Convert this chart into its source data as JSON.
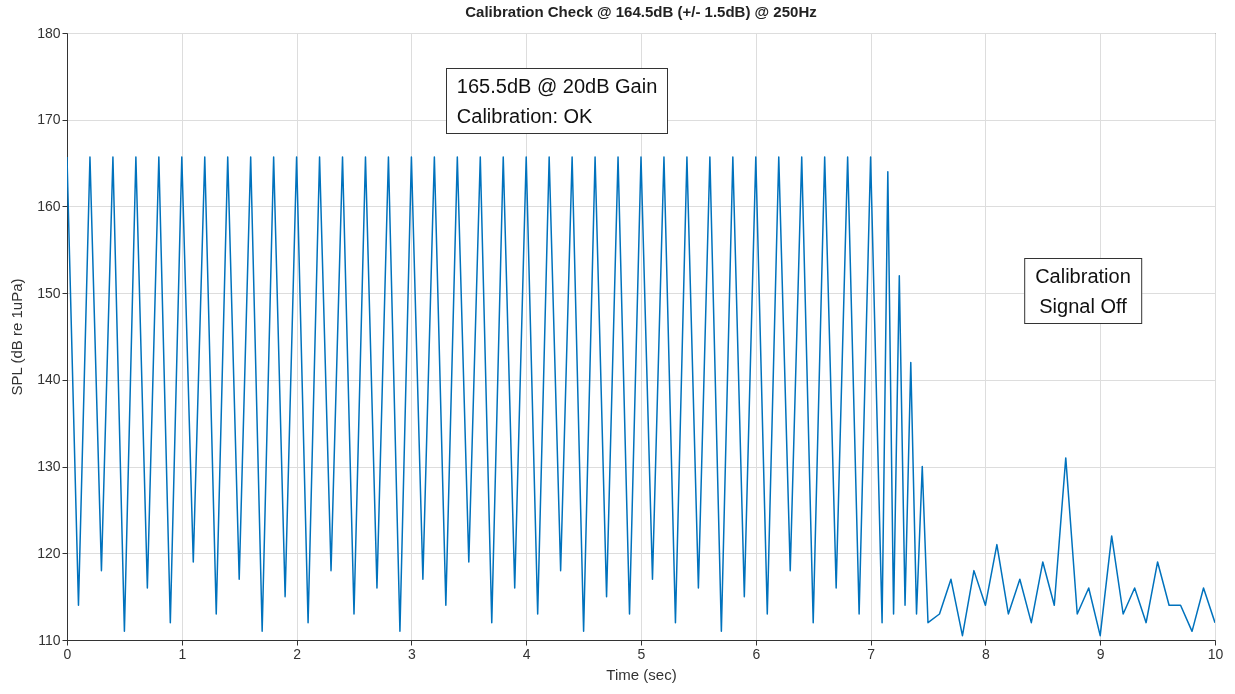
{
  "chart_data": {
    "type": "line",
    "title": "Calibration Check @ 164.5dB (+/- 1.5dB) @ 250Hz",
    "xlabel": "Time (sec)",
    "ylabel": "SPL (dB re 1uPa)",
    "xlim": [
      0,
      10
    ],
    "xticks": [
      0,
      1,
      2,
      3,
      4,
      5,
      6,
      7,
      8,
      9,
      10
    ],
    "ylim": [
      110,
      180
    ],
    "yticks": [
      110,
      120,
      130,
      140,
      150,
      160,
      170,
      180
    ],
    "grid": true,
    "annotations": [
      "165.5dB @ 20dB Gain\nCalibration: OK",
      "Calibration\nSignal Off"
    ],
    "series": [
      {
        "color": "#0072bd",
        "x": [
          0,
          0.1,
          0.2,
          0.3,
          0.4,
          0.5,
          0.6,
          0.7,
          0.8,
          0.9,
          1,
          1.1,
          1.2,
          1.3,
          1.4,
          1.5,
          1.6,
          1.7,
          1.8,
          1.9,
          2,
          2.1,
          2.2,
          2.3,
          2.4,
          2.5,
          2.6,
          2.7,
          2.8,
          2.9,
          3,
          3.1,
          3.2,
          3.3,
          3.4,
          3.5,
          3.6,
          3.7,
          3.8,
          3.9,
          4,
          4.1,
          4.2,
          4.3,
          4.4,
          4.5,
          4.6,
          4.7,
          4.8,
          4.9,
          5,
          5.1,
          5.2,
          5.3,
          5.4,
          5.5,
          5.6,
          5.7,
          5.8,
          5.9,
          6,
          6.1,
          6.2,
          6.3,
          6.4,
          6.5,
          6.6,
          6.7,
          6.8,
          6.9,
          7,
          7.1,
          7.15,
          7.2,
          7.25,
          7.3,
          7.35,
          7.4,
          7.45,
          7.5,
          7.6,
          7.7,
          7.8,
          7.9,
          8,
          8.1,
          8.2,
          8.3,
          8.4,
          8.5,
          8.6,
          8.7,
          8.8,
          8.9,
          9,
          9.1,
          9.2,
          9.3,
          9.4,
          9.5,
          9.6,
          9.7,
          9.8,
          9.9,
          10
        ],
        "values": [
          165.7,
          114,
          165.7,
          118,
          165.7,
          111,
          165.7,
          116,
          165.7,
          112,
          165.7,
          119,
          165.7,
          113,
          165.7,
          117,
          165.7,
          111,
          165.7,
          115,
          165.7,
          112,
          165.7,
          118,
          165.7,
          113,
          165.7,
          116,
          165.7,
          111,
          165.7,
          117,
          165.7,
          114,
          165.7,
          119,
          165.7,
          112,
          165.7,
          116,
          165.7,
          113,
          165.7,
          118,
          165.7,
          111,
          165.7,
          115,
          165.7,
          113,
          165.7,
          117,
          165.7,
          112,
          165.7,
          116,
          165.7,
          111,
          165.7,
          115,
          165.7,
          113,
          165.7,
          118,
          165.7,
          112,
          165.7,
          116,
          165.7,
          113,
          165.7,
          112,
          164,
          113,
          152,
          114,
          142,
          113,
          130,
          112,
          113,
          117,
          110.5,
          118,
          114,
          121,
          113,
          117,
          112,
          119,
          114,
          131,
          113,
          116,
          110.5,
          122,
          113,
          116,
          112,
          119,
          114,
          114,
          111,
          116,
          112
        ]
      }
    ]
  }
}
